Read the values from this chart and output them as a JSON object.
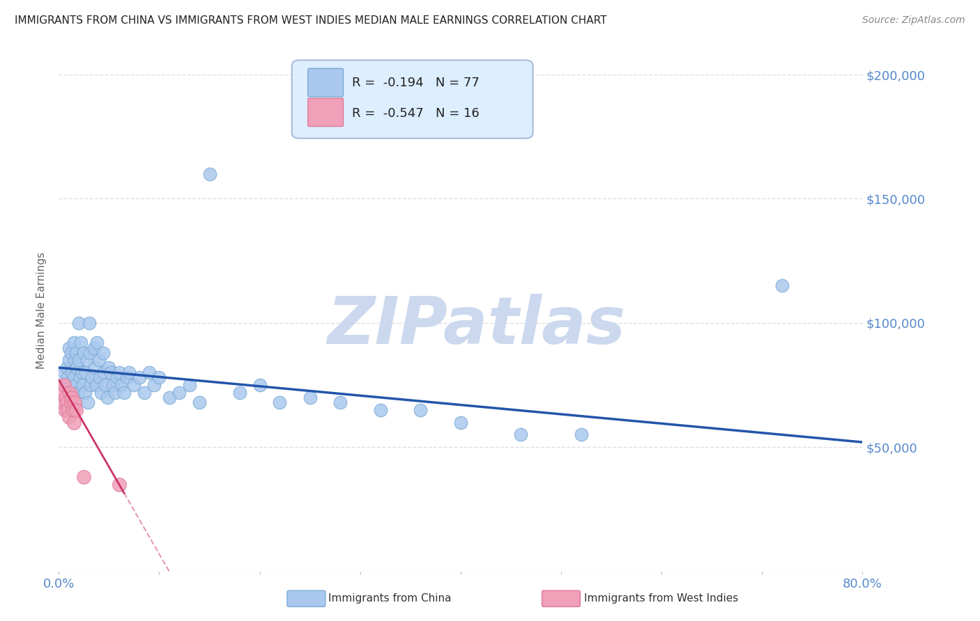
{
  "title": "IMMIGRANTS FROM CHINA VS IMMIGRANTS FROM WEST INDIES MEDIAN MALE EARNINGS CORRELATION CHART",
  "source": "Source: ZipAtlas.com",
  "ylabel": "Median Male Earnings",
  "xlim": [
    0,
    0.8
  ],
  "ylim": [
    0,
    210000
  ],
  "yticks": [
    0,
    50000,
    100000,
    150000,
    200000
  ],
  "ytick_labels": [
    "",
    "$50,000",
    "$100,000",
    "$150,000",
    "$200,000"
  ],
  "xtick_labels": [
    "0.0%",
    "",
    "",
    "",
    "",
    "",
    "",
    "",
    "80.0%"
  ],
  "china_color": "#aac8ee",
  "china_edge_color": "#7aaad4",
  "west_indies_color": "#f0a0b8",
  "west_indies_edge_color": "#dd7799",
  "trend_china_color": "#2255aa",
  "trend_wi_color": "#cc3366",
  "r_china": -0.194,
  "n_china": 77,
  "r_wi": -0.547,
  "n_wi": 16,
  "watermark": "ZIPatlas",
  "watermark_color": "#ccd8ee",
  "china_x": [
    0.005,
    0.007,
    0.008,
    0.009,
    0.01,
    0.01,
    0.01,
    0.012,
    0.013,
    0.013,
    0.014,
    0.015,
    0.015,
    0.016,
    0.016,
    0.017,
    0.017,
    0.018,
    0.019,
    0.02,
    0.02,
    0.021,
    0.022,
    0.023,
    0.024,
    0.025,
    0.026,
    0.027,
    0.028,
    0.029,
    0.03,
    0.031,
    0.032,
    0.033,
    0.035,
    0.036,
    0.037,
    0.038,
    0.04,
    0.041,
    0.042,
    0.044,
    0.045,
    0.046,
    0.048,
    0.05,
    0.052,
    0.054,
    0.056,
    0.058,
    0.06,
    0.062,
    0.065,
    0.068,
    0.07,
    0.075,
    0.08,
    0.085,
    0.09,
    0.095,
    0.1,
    0.11,
    0.12,
    0.13,
    0.14,
    0.15,
    0.18,
    0.2,
    0.22,
    0.25,
    0.28,
    0.32,
    0.36,
    0.4,
    0.46,
    0.52,
    0.72
  ],
  "china_y": [
    80000,
    75000,
    82000,
    78000,
    85000,
    90000,
    70000,
    88000,
    72000,
    80000,
    75000,
    92000,
    78000,
    85000,
    68000,
    88000,
    75000,
    82000,
    72000,
    100000,
    85000,
    78000,
    92000,
    80000,
    75000,
    88000,
    72000,
    80000,
    85000,
    68000,
    100000,
    88000,
    75000,
    78000,
    90000,
    82000,
    75000,
    92000,
    85000,
    78000,
    72000,
    88000,
    80000,
    75000,
    70000,
    82000,
    80000,
    75000,
    72000,
    78000,
    80000,
    75000,
    72000,
    78000,
    80000,
    75000,
    78000,
    72000,
    80000,
    75000,
    78000,
    70000,
    72000,
    75000,
    68000,
    160000,
    72000,
    75000,
    68000,
    70000,
    68000,
    65000,
    65000,
    60000,
    55000,
    55000,
    115000
  ],
  "wi_x": [
    0.003,
    0.004,
    0.005,
    0.006,
    0.007,
    0.008,
    0.009,
    0.01,
    0.011,
    0.012,
    0.013,
    0.014,
    0.015,
    0.016,
    0.017,
    0.06
  ],
  "wi_y": [
    72000,
    68000,
    75000,
    65000,
    70000,
    68000,
    65000,
    62000,
    72000,
    68000,
    70000,
    65000,
    60000,
    68000,
    65000,
    35000
  ],
  "wi_outlier_x": [
    0.025
  ],
  "wi_outlier_y": [
    38000
  ],
  "background_color": "#ffffff",
  "grid_color": "#e0e0e0",
  "grid_style": "--",
  "title_color": "#222222",
  "axis_label_color": "#5588cc",
  "legend_box_color": "#ddeeff",
  "legend_border_color": "#aabbdd"
}
